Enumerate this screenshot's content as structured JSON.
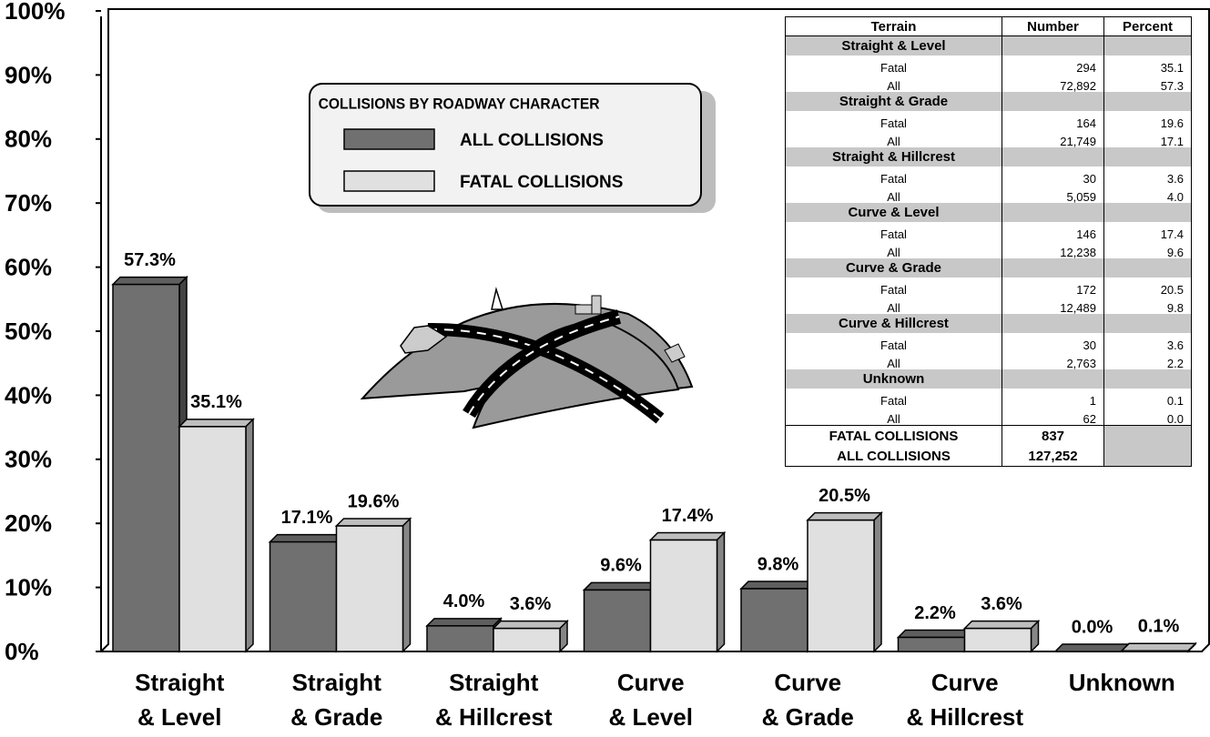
{
  "chart_data": {
    "type": "bar3d",
    "legend_title": "COLLISIONS BY ROADWAY CHARACTER",
    "categories": [
      [
        "Straight",
        "& Level"
      ],
      [
        "Straight",
        "& Grade"
      ],
      [
        "Straight",
        "& Hillcrest"
      ],
      [
        "Curve",
        "& Level"
      ],
      [
        "Curve",
        "& Grade"
      ],
      [
        "Curve",
        "& Hillcrest"
      ],
      [
        "Unknown"
      ]
    ],
    "series": [
      {
        "name": "ALL COLLISIONS",
        "color": "#707070",
        "values": [
          57.3,
          17.1,
          4.0,
          9.6,
          9.8,
          2.2,
          0.0
        ],
        "value_labels": [
          "57.3%",
          "17.1%",
          "4.0%",
          "9.6%",
          "9.8%",
          "2.2%",
          "0.0%"
        ]
      },
      {
        "name": "FATAL COLLISIONS",
        "color": "#e0e0e0",
        "values": [
          35.1,
          19.6,
          3.6,
          17.4,
          20.5,
          3.6,
          0.1
        ],
        "value_labels": [
          "35.1%",
          "19.6%",
          "3.6%",
          "17.4%",
          "20.5%",
          "3.6%",
          "0.1%"
        ]
      }
    ],
    "ylim": [
      0,
      100
    ],
    "yticks": [
      {
        "value": 0,
        "label": "0%"
      },
      {
        "value": 10,
        "label": "10%"
      },
      {
        "value": 20,
        "label": "20%"
      },
      {
        "value": 30,
        "label": "30%"
      },
      {
        "value": 40,
        "label": "40%"
      },
      {
        "value": 50,
        "label": "50%"
      },
      {
        "value": 60,
        "label": "60%"
      },
      {
        "value": 70,
        "label": "70%"
      },
      {
        "value": 80,
        "label": "80%"
      },
      {
        "value": 90,
        "label": "90%"
      },
      {
        "value": 100,
        "label": "100%"
      }
    ],
    "grid": false
  },
  "table": {
    "header": [
      "Terrain",
      "Number",
      "Percent"
    ],
    "groups": [
      {
        "name": "Straight & Level",
        "rows": [
          [
            "Fatal",
            "294",
            "35.1"
          ],
          [
            "All",
            "72,892",
            "57.3"
          ]
        ]
      },
      {
        "name": "Straight & Grade",
        "rows": [
          [
            "Fatal",
            "164",
            "19.6"
          ],
          [
            "All",
            "21,749",
            "17.1"
          ]
        ]
      },
      {
        "name": "Straight & Hillcrest",
        "rows": [
          [
            "Fatal",
            "30",
            "3.6"
          ],
          [
            "All",
            "5,059",
            "4.0"
          ]
        ]
      },
      {
        "name": "Curve & Level",
        "rows": [
          [
            "Fatal",
            "146",
            "17.4"
          ],
          [
            "All",
            "12,238",
            "9.6"
          ]
        ]
      },
      {
        "name": "Curve & Grade",
        "rows": [
          [
            "Fatal",
            "172",
            "20.5"
          ],
          [
            "All",
            "12,489",
            "9.8"
          ]
        ]
      },
      {
        "name": "Curve & Hillcrest",
        "rows": [
          [
            "Fatal",
            "30",
            "3.6"
          ],
          [
            "All",
            "2,763",
            "2.2"
          ]
        ]
      },
      {
        "name": "Unknown",
        "rows": [
          [
            "Fatal",
            "1",
            "0.1"
          ],
          [
            "All",
            "62",
            "0.0"
          ]
        ]
      }
    ],
    "totals": [
      [
        "FATAL COLLISIONS",
        "837"
      ],
      [
        "ALL COLLISIONS",
        "127,252"
      ]
    ]
  }
}
